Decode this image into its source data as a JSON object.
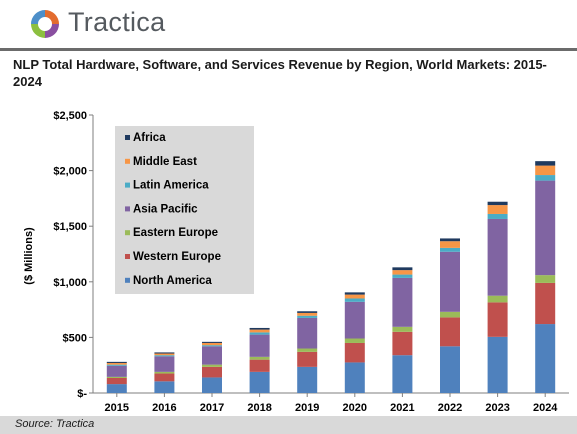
{
  "brand": {
    "name": "Tractica"
  },
  "title": "NLP Total Hardware, Software, and Services Revenue by Region, World Markets: 2015-2024",
  "source": "Source: Tractica",
  "colors": {
    "north_america": "#4f81bd",
    "western_europe": "#c0504d",
    "eastern_europe": "#9bbb59",
    "asia_pacific": "#8064a2",
    "latin_america": "#4bacc6",
    "middle_east": "#f79646",
    "africa": "#1f3a5f",
    "legend_bg": "#d9d9d9",
    "logo_segments": [
      "#e36c2e",
      "#4d8fc9",
      "#8cbf3f",
      "#8a4fa0"
    ]
  },
  "chart_data": {
    "type": "bar",
    "stacked": true,
    "categories": [
      "2015",
      "2016",
      "2017",
      "2018",
      "2019",
      "2020",
      "2021",
      "2022",
      "2023",
      "2024"
    ],
    "ylabel": "($ Millions)",
    "xlabel": "",
    "ylim": [
      0,
      2500
    ],
    "yticks": [
      0,
      500,
      1000,
      1500,
      2000,
      2500
    ],
    "ytick_labels": [
      "$-",
      "$500",
      "$1,000",
      "$1,500",
      "$2,000",
      "$2,500"
    ],
    "grid": false,
    "legend_position": "top-left",
    "legend_order": [
      "Africa",
      "Middle East",
      "Latin America",
      "Asia Pacific",
      "Eastern Europe",
      "Western Europe",
      "North America"
    ],
    "series": [
      {
        "name": "North America",
        "color_key": "north_america",
        "values": [
          80,
          105,
          140,
          190,
          235,
          275,
          340,
          420,
          505,
          620
        ]
      },
      {
        "name": "Western Europe",
        "color_key": "western_europe",
        "values": [
          55,
          70,
          95,
          110,
          135,
          175,
          210,
          260,
          310,
          370
        ]
      },
      {
        "name": "Eastern Europe",
        "color_key": "eastern_europe",
        "values": [
          10,
          15,
          20,
          25,
          30,
          40,
          45,
          50,
          60,
          70
        ]
      },
      {
        "name": "Asia Pacific",
        "color_key": "asia_pacific",
        "values": [
          100,
          140,
          165,
          200,
          275,
          330,
          440,
          540,
          690,
          850
        ]
      },
      {
        "name": "Latin America",
        "color_key": "latin_america",
        "values": [
          10,
          10,
          10,
          20,
          20,
          30,
          30,
          35,
          45,
          50
        ]
      },
      {
        "name": "Middle East",
        "color_key": "middle_east",
        "values": [
          15,
          15,
          20,
          25,
          25,
          35,
          40,
          60,
          80,
          85
        ]
      },
      {
        "name": "Africa",
        "color_key": "africa",
        "values": [
          10,
          10,
          10,
          15,
          15,
          20,
          25,
          25,
          30,
          40
        ]
      }
    ]
  }
}
